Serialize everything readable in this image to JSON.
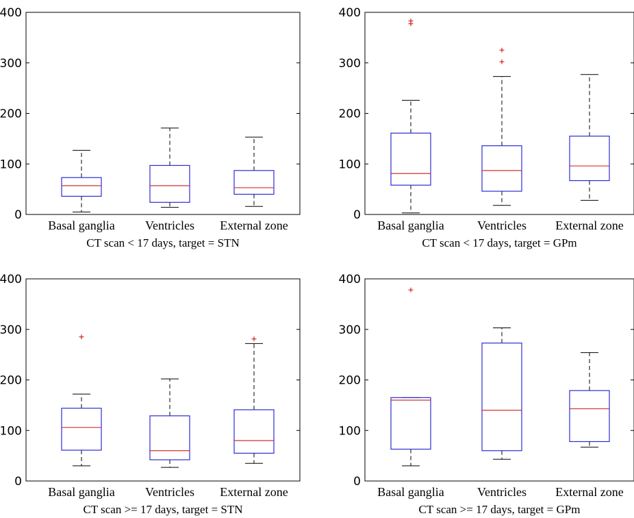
{
  "chart_data": [
    {
      "type": "box",
      "xlabel": "CT scan < 17 days, target = STN",
      "ylim": [
        0,
        400
      ],
      "yticks": [
        "0",
        "100",
        "200",
        "300",
        "400"
      ],
      "categories": [
        "Basal ganglia",
        "Ventricles",
        "External zone"
      ],
      "boxes": [
        {
          "whisker_low": 5,
          "q1": 36,
          "median": 57,
          "q3": 73,
          "whisker_high": 127,
          "outliers": []
        },
        {
          "whisker_low": 14,
          "q1": 24,
          "median": 57,
          "q3": 97,
          "whisker_high": 171,
          "outliers": []
        },
        {
          "whisker_low": 16,
          "q1": 40,
          "median": 53,
          "q3": 87,
          "whisker_high": 153,
          "outliers": []
        }
      ],
      "colors": {
        "box": "#2b2bd6",
        "median": "#d03030",
        "whisker": "#000000",
        "outlier": "#d03030"
      }
    },
    {
      "type": "box",
      "xlabel": "CT scan < 17 days, target = GPm",
      "ylim": [
        0,
        400
      ],
      "yticks": [
        "0",
        "100",
        "200",
        "300",
        "400"
      ],
      "categories": [
        "Basal ganglia",
        "Ventricles",
        "External zone"
      ],
      "boxes": [
        {
          "whisker_low": 3,
          "q1": 58,
          "median": 81,
          "q3": 161,
          "whisker_high": 226,
          "outliers": [
            378,
            384
          ]
        },
        {
          "whisker_low": 18,
          "q1": 46,
          "median": 87,
          "q3": 136,
          "whisker_high": 273,
          "outliers": [
            303,
            326
          ]
        },
        {
          "whisker_low": 28,
          "q1": 67,
          "median": 96,
          "q3": 155,
          "whisker_high": 277,
          "outliers": []
        }
      ],
      "colors": {
        "box": "#2b2bd6",
        "median": "#d03030",
        "whisker": "#000000",
        "outlier": "#d03030"
      }
    },
    {
      "type": "box",
      "xlabel": "CT scan >= 17 days, target = STN",
      "ylim": [
        0,
        400
      ],
      "yticks": [
        "0",
        "100",
        "200",
        "300",
        "400"
      ],
      "categories": [
        "Basal ganglia",
        "Ventricles",
        "External zone"
      ],
      "boxes": [
        {
          "whisker_low": 30,
          "q1": 61,
          "median": 106,
          "q3": 144,
          "whisker_high": 172,
          "outliers": [
            286
          ]
        },
        {
          "whisker_low": 27,
          "q1": 42,
          "median": 60,
          "q3": 129,
          "whisker_high": 202,
          "outliers": []
        },
        {
          "whisker_low": 35,
          "q1": 55,
          "median": 80,
          "q3": 141,
          "whisker_high": 272,
          "outliers": [
            282
          ]
        }
      ],
      "colors": {
        "box": "#2b2bd6",
        "median": "#d03030",
        "whisker": "#000000",
        "outlier": "#d03030"
      }
    },
    {
      "type": "box",
      "xlabel": "CT scan >= 17 days, target = GPm",
      "ylim": [
        0,
        400
      ],
      "yticks": [
        "0",
        "100",
        "200",
        "300",
        "400"
      ],
      "categories": [
        "Basal ganglia",
        "Ventricles",
        "External zone"
      ],
      "boxes": [
        {
          "whisker_low": 30,
          "q1": 63,
          "median": 160,
          "q3": 165,
          "whisker_high": 165,
          "outliers": [
            379
          ]
        },
        {
          "whisker_low": 43,
          "q1": 60,
          "median": 140,
          "q3": 273,
          "whisker_high": 303,
          "outliers": []
        },
        {
          "whisker_low": 67,
          "q1": 78,
          "median": 143,
          "q3": 179,
          "whisker_high": 254,
          "outliers": []
        }
      ],
      "colors": {
        "box": "#2b2bd6",
        "median": "#d03030",
        "whisker": "#000000",
        "outlier": "#d03030"
      }
    }
  ]
}
